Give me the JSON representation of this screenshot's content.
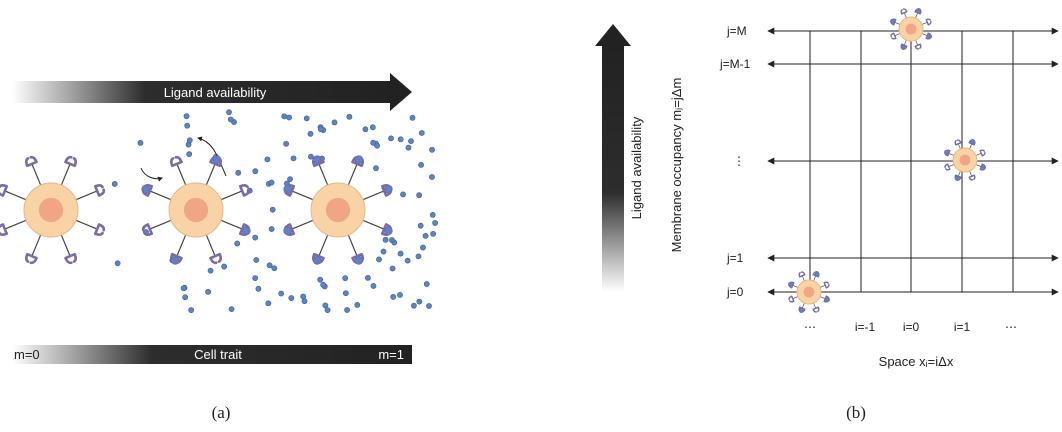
{
  "panel_a": {
    "caption": "(a)",
    "ligand_arrow_label": "Ligand availability",
    "cell_trait_label": "Cell trait",
    "m_start_label": "m=0",
    "m_end_label": "m=1"
  },
  "panel_b": {
    "caption": "(b)",
    "vertical_arrow_label": "Ligand availability",
    "y_axis_label": "Membrane occupancy  mⱼ=jΔm",
    "x_axis_label": "Space xᵢ=iΔx",
    "row_labels": [
      "j=M",
      "j=M-1",
      "⋮",
      "j=1",
      "j=0"
    ],
    "col_labels": [
      "⋯",
      "i=-1",
      "i=0",
      "i=1",
      "⋯"
    ]
  },
  "colors": {
    "cell_outer": "#f9d2a6",
    "cell_nucleus": "#f0a584",
    "receptor": "#7a6aa8",
    "ligand": "#5b84c4",
    "arrow_dark": "#222222"
  }
}
